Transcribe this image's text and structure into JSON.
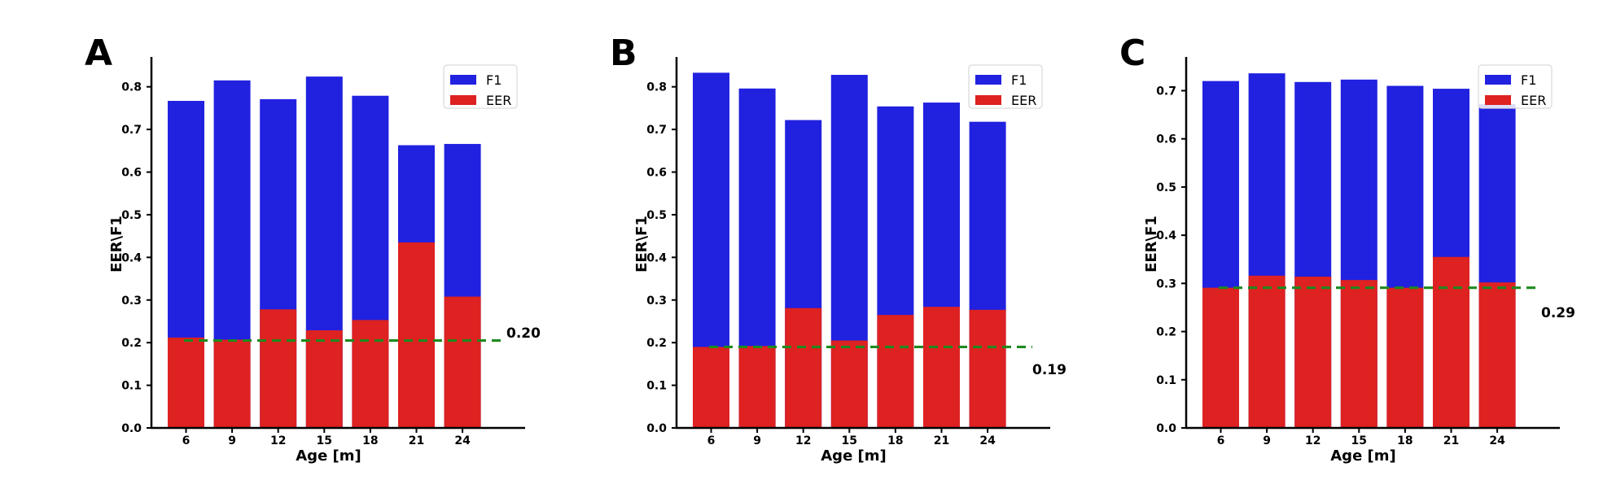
{
  "colors": {
    "f1": "#2121e0",
    "eer": "#de2121",
    "threshold": "#1e8a1e",
    "axis": "#000000"
  },
  "chart_data": [
    {
      "type": "bar",
      "panel_label": "A",
      "xlabel": "Age [m]",
      "ylabel": "EER\\F1",
      "ylim": [
        0,
        0.87
      ],
      "yticks": [
        "0.0",
        "0.1",
        "0.2",
        "0.3",
        "0.4",
        "0.5",
        "0.6",
        "0.7",
        "0.8"
      ],
      "categories": [
        "6",
        "9",
        "12",
        "15",
        "18",
        "21",
        "24"
      ],
      "series": [
        {
          "name": "F1",
          "values": [
            0.767,
            0.815,
            0.771,
            0.824,
            0.779,
            0.663,
            0.666
          ]
        },
        {
          "name": "EER",
          "values": [
            0.212,
            0.207,
            0.278,
            0.229,
            0.253,
            0.435,
            0.308
          ]
        }
      ],
      "threshold": 0.205,
      "threshold_label": "0.20",
      "legend": "top-right"
    },
    {
      "type": "bar",
      "panel_label": "B",
      "xlabel": "Age [m]",
      "ylabel": "EER\\F1",
      "ylim": [
        0,
        0.87
      ],
      "yticks": [
        "0.0",
        "0.1",
        "0.2",
        "0.3",
        "0.4",
        "0.5",
        "0.6",
        "0.7",
        "0.8"
      ],
      "categories": [
        "6",
        "9",
        "12",
        "15",
        "18",
        "21",
        "24"
      ],
      "series": [
        {
          "name": "F1",
          "values": [
            0.833,
            0.796,
            0.722,
            0.828,
            0.754,
            0.763,
            0.718
          ]
        },
        {
          "name": "EER",
          "values": [
            0.19,
            0.192,
            0.281,
            0.205,
            0.265,
            0.284,
            0.277
          ]
        }
      ],
      "threshold": 0.19,
      "threshold_label": "0.19",
      "legend": "top-right"
    },
    {
      "type": "bar",
      "panel_label": "C",
      "xlabel": "Age [m]",
      "ylabel": "EER\\F1",
      "ylim": [
        0,
        0.77
      ],
      "yticks": [
        "0.0",
        "0.1",
        "0.2",
        "0.3",
        "0.4",
        "0.5",
        "0.6",
        "0.7"
      ],
      "categories": [
        "6",
        "9",
        "12",
        "15",
        "18",
        "21",
        "24"
      ],
      "series": [
        {
          "name": "F1",
          "values": [
            0.72,
            0.736,
            0.718,
            0.723,
            0.71,
            0.704,
            0.672
          ]
        },
        {
          "name": "EER",
          "values": [
            0.291,
            0.316,
            0.314,
            0.307,
            0.291,
            0.355,
            0.302
          ]
        }
      ],
      "threshold": 0.291,
      "threshold_label": "0.29",
      "legend": "top-right"
    }
  ]
}
